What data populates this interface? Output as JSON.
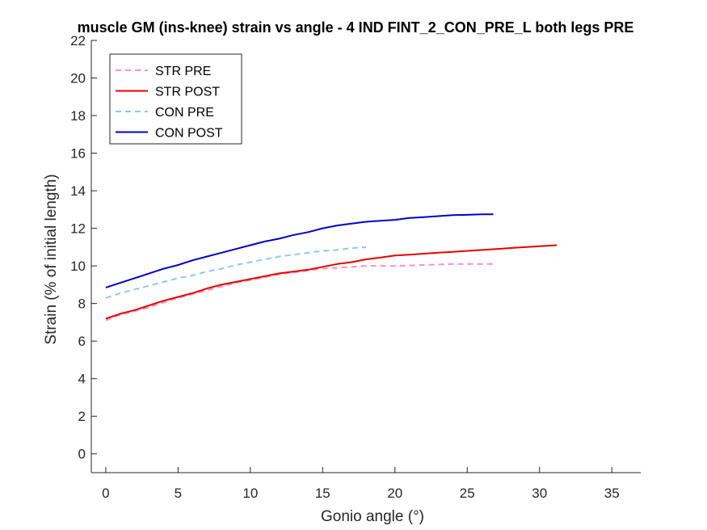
{
  "chart_data": {
    "type": "line",
    "title": "muscle GM (ins-knee) strain vs angle - 4 IND FINT_2_CON_PRE_L both legs PRE",
    "xlabel": "Gonio angle (°)",
    "ylabel": "Strain (% of initial length)",
    "xlim": [
      -1,
      37
    ],
    "ylim": [
      -1,
      22
    ],
    "xticks": [
      0,
      5,
      10,
      15,
      20,
      25,
      30,
      35
    ],
    "yticks": [
      0,
      2,
      4,
      6,
      8,
      10,
      12,
      14,
      16,
      18,
      20,
      22
    ],
    "grid": false,
    "legend_position": "top-left",
    "series": [
      {
        "name": "STR PRE",
        "color": "#ff8fc0",
        "dash": "dashed",
        "x": [
          0,
          1,
          2,
          3,
          4,
          5,
          6,
          7,
          8,
          9,
          10,
          11,
          12,
          13,
          14,
          15,
          16,
          17,
          18,
          19,
          20,
          22,
          24,
          26,
          27
        ],
        "y": [
          7.1,
          7.4,
          7.6,
          7.8,
          8.05,
          8.3,
          8.5,
          8.7,
          8.9,
          9.1,
          9.25,
          9.4,
          9.55,
          9.65,
          9.75,
          9.85,
          9.9,
          9.95,
          10.0,
          10.0,
          10.0,
          10.05,
          10.1,
          10.1,
          10.1
        ]
      },
      {
        "name": "STR POST",
        "color": "#e80000",
        "dash": "solid",
        "x": [
          0,
          1,
          2,
          3,
          4,
          5,
          6,
          7,
          8,
          9,
          10,
          11,
          12,
          13,
          14,
          15,
          16,
          17,
          18,
          19,
          20,
          21,
          22,
          23,
          24,
          25,
          26,
          27,
          28,
          29,
          30,
          31.2
        ],
        "y": [
          7.2,
          7.45,
          7.65,
          7.9,
          8.15,
          8.35,
          8.55,
          8.8,
          9.0,
          9.15,
          9.3,
          9.45,
          9.6,
          9.7,
          9.8,
          9.95,
          10.1,
          10.2,
          10.35,
          10.45,
          10.55,
          10.6,
          10.65,
          10.7,
          10.75,
          10.8,
          10.85,
          10.9,
          10.95,
          11.0,
          11.05,
          11.1
        ]
      },
      {
        "name": "CON PRE",
        "color": "#8ec8ef",
        "dash": "dashed",
        "x": [
          0,
          1,
          2,
          3,
          4,
          5,
          6,
          7,
          8,
          9,
          10,
          11,
          12,
          13,
          14,
          15,
          16,
          17,
          18
        ],
        "y": [
          8.3,
          8.55,
          8.75,
          8.95,
          9.15,
          9.35,
          9.5,
          9.7,
          9.85,
          10.05,
          10.2,
          10.35,
          10.5,
          10.6,
          10.7,
          10.8,
          10.85,
          10.95,
          11.0
        ]
      },
      {
        "name": "CON POST",
        "color": "#0000cc",
        "dash": "solid",
        "x": [
          0,
          1,
          2,
          3,
          4,
          5,
          6,
          7,
          8,
          9,
          10,
          11,
          12,
          13,
          14,
          15,
          16,
          17,
          18,
          19,
          20,
          21,
          22,
          23,
          24,
          25,
          26,
          26.8
        ],
        "y": [
          8.85,
          9.1,
          9.35,
          9.6,
          9.85,
          10.05,
          10.3,
          10.5,
          10.7,
          10.9,
          11.1,
          11.3,
          11.45,
          11.65,
          11.8,
          12.0,
          12.15,
          12.25,
          12.35,
          12.4,
          12.45,
          12.55,
          12.6,
          12.65,
          12.7,
          12.72,
          12.75,
          12.75
        ]
      }
    ]
  }
}
